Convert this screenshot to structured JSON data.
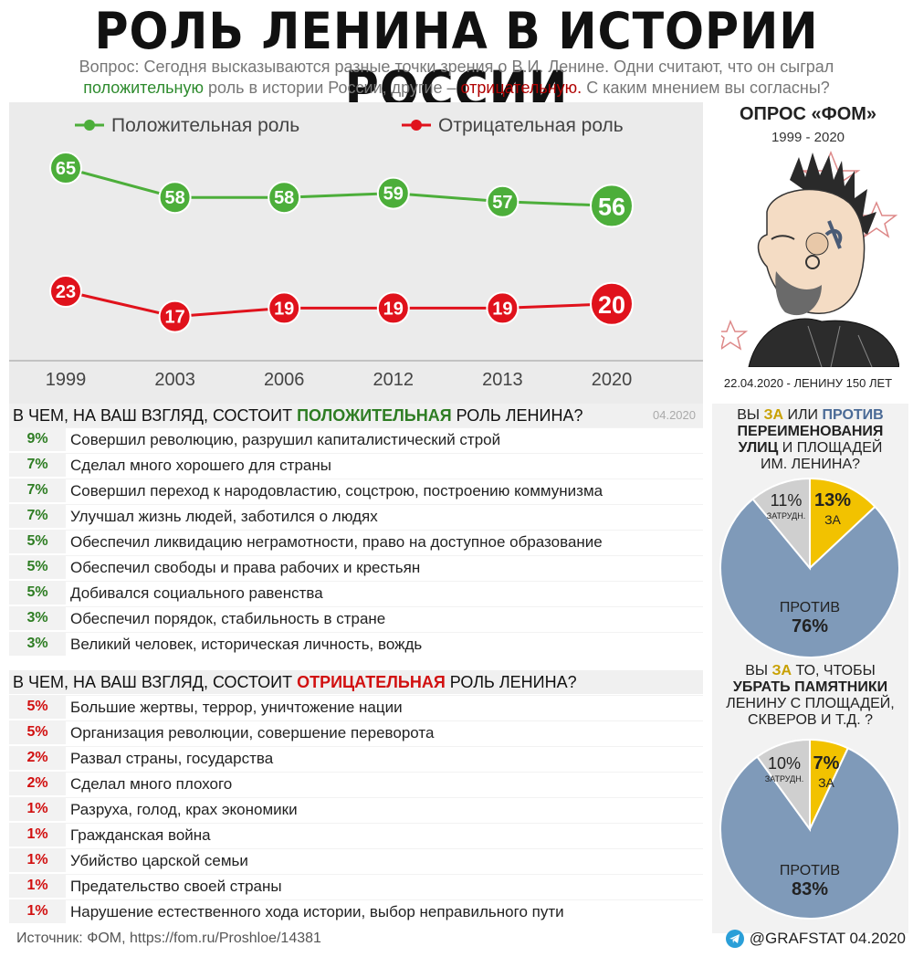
{
  "title": "РОЛЬ ЛЕНИНА В ИСТОРИИ РОССИИ",
  "question": {
    "part1": "Вопрос: Сегодня высказываются разные точки зрения о В.И. Ленине. Одни считают, что он сыграл",
    "positive_word": "положительную",
    "part2": " роль в истории России, другие – ",
    "negative_word": "отрицательную.",
    "part3": " С каким мнением вы согласны?"
  },
  "chart_data": [
    {
      "type": "line",
      "x": [
        "1999",
        "2003",
        "2006",
        "2012",
        "2013",
        "2020"
      ],
      "series": [
        {
          "name": "Положительная роль",
          "color": "#4cae3a",
          "values": [
            65,
            58,
            58,
            59,
            57,
            56
          ]
        },
        {
          "name": "Отрицательная роль",
          "color": "#e0121c",
          "values": [
            23,
            17,
            19,
            19,
            19,
            20
          ]
        }
      ],
      "legend": "top"
    },
    {
      "type": "pie",
      "labels": [
        "ЗА",
        "ПРОТИВ",
        "ЗАТРУДН."
      ],
      "values": [
        13,
        76,
        11
      ],
      "display": [
        "13%",
        "76%",
        "11%"
      ],
      "colors": [
        "#f2c200",
        "#7f9ab9",
        "#cfcfcf"
      ]
    },
    {
      "type": "pie",
      "labels": [
        "ЗА",
        "ПРОТИВ",
        "ЗАТРУДН."
      ],
      "values": [
        7,
        83,
        10
      ],
      "display": [
        "7%",
        "83%",
        "10%"
      ],
      "colors": [
        "#f2c200",
        "#7f9ab9",
        "#cfcfcf"
      ]
    }
  ],
  "fom": {
    "title": "ОПРОС «ФОМ»",
    "years": "1999 - 2020",
    "date_note": "22.04.2020 - ЛЕНИНУ 150 ЛЕТ"
  },
  "positive": {
    "head_pre": "В ЧЕМ, НА ВАШ ВЗГЛЯД, СОСТОИТ ",
    "head_word": "ПОЛОЖИТЕЛЬНАЯ",
    "head_post": " РОЛЬ ЛЕНИНА?",
    "stamp": "04.2020",
    "items": [
      {
        "pct": "9%",
        "text": "Совершил революцию, разрушил капиталистический строй"
      },
      {
        "pct": "7%",
        "text": "Сделал много хорошего для страны"
      },
      {
        "pct": "7%",
        "text": "Совершил переход к народовластию, соцстрою, построению коммунизма"
      },
      {
        "pct": "7%",
        "text": "Улучшал жизнь людей, заботился о людях"
      },
      {
        "pct": "5%",
        "text": "Обеспечил ликвидацию неграмотности, право на доступное образование"
      },
      {
        "pct": "5%",
        "text": "Обеспечил свободы и права рабочих и крестьян"
      },
      {
        "pct": "5%",
        "text": "Добивался социального равенства"
      },
      {
        "pct": "3%",
        "text": "Обеспечил порядок, стабильность в стране"
      },
      {
        "pct": "3%",
        "text": "Великий человек, историческая личность, вождь"
      }
    ]
  },
  "negative": {
    "head_pre": "В ЧЕМ, НА ВАШ ВЗГЛЯД, СОСТОИТ ",
    "head_word": "ОТРИЦАТЕЛЬНАЯ",
    "head_post": " РОЛЬ ЛЕНИНА?",
    "items": [
      {
        "pct": "5%",
        "text": "Большие жертвы, террор, уничтожение нации"
      },
      {
        "pct": "5%",
        "text": "Организация революции, совершение переворота"
      },
      {
        "pct": "2%",
        "text": "Развал страны, государства"
      },
      {
        "pct": "2%",
        "text": "Сделал много плохого"
      },
      {
        "pct": "1%",
        "text": "Разруха, голод, крах экономики"
      },
      {
        "pct": "1%",
        "text": "Гражданская война"
      },
      {
        "pct": "1%",
        "text": "Убийство царской семьи"
      },
      {
        "pct": "1%",
        "text": "Предательство своей страны"
      },
      {
        "pct": "1%",
        "text": "Нарушение естественного хода истории, выбор неправильного пути"
      }
    ]
  },
  "pie1_question": {
    "l1a": "ВЫ ",
    "l1za": "ЗА",
    "l1b": " ИЛИ ",
    "l1pr": "ПРОТИВ",
    "l2": "ПЕРЕИМЕНОВАНИЯ",
    "l3a": "УЛИЦ",
    "l3b": " И ПЛОЩАДЕЙ",
    "l4": "ИМ. ЛЕНИНА?"
  },
  "pie2_question": {
    "l1a": "ВЫ ",
    "l1za": "ЗА",
    "l1b": " ТО, ЧТОБЫ",
    "l2": "УБРАТЬ ПАМЯТНИКИ",
    "l3": "ЛЕНИНУ С ПЛОЩАДЕЙ,",
    "l4": "СКВЕРОВ И Т.Д. ?"
  },
  "source": "Источник: ФОМ, https://fom.ru/Proshloe/14381",
  "credit": "@GRAFSTAT 04.2020"
}
